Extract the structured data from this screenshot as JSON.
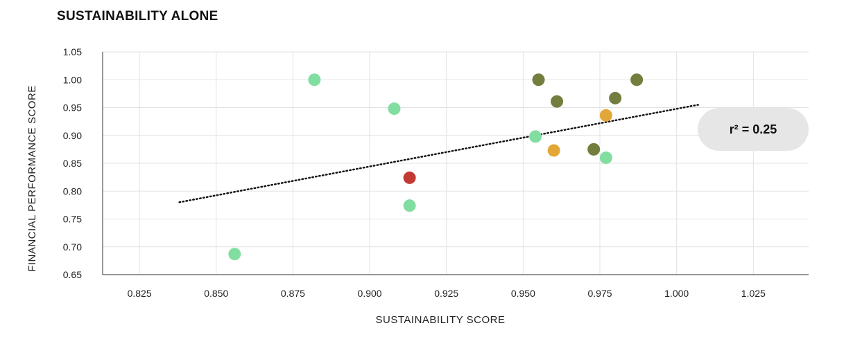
{
  "chart_data": {
    "type": "scatter",
    "title": "SUSTAINABILITY ALONE",
    "xlabel": "SUSTAINABILITY SCORE",
    "ylabel": "FINANCIAL PERFORMANCE SCORE",
    "xlim": [
      0.813,
      1.043
    ],
    "ylim": [
      0.65,
      1.05
    ],
    "x_ticks": [
      0.825,
      0.85,
      0.875,
      0.9,
      0.925,
      0.95,
      0.975,
      1.0,
      1.025
    ],
    "x_tick_labels": [
      "0.825",
      "0.850",
      "0.875",
      "0.900",
      "0.925",
      "0.950",
      "0.975",
      "1.000",
      "1.025"
    ],
    "y_ticks": [
      0.65,
      0.7,
      0.75,
      0.8,
      0.85,
      0.9,
      0.95,
      1.0,
      1.05
    ],
    "y_tick_labels": [
      "0.65",
      "0.70",
      "0.75",
      "0.80",
      "0.85",
      "0.90",
      "0.95",
      "1.00",
      "1.05"
    ],
    "grid": true,
    "points": [
      {
        "x": 0.882,
        "y": 1.0,
        "color": "#82dea0"
      },
      {
        "x": 0.908,
        "y": 0.948,
        "color": "#82dea0"
      },
      {
        "x": 0.913,
        "y": 0.774,
        "color": "#82dea0"
      },
      {
        "x": 0.856,
        "y": 0.687,
        "color": "#82dea0"
      },
      {
        "x": 0.954,
        "y": 0.898,
        "color": "#82dea0"
      },
      {
        "x": 0.977,
        "y": 0.86,
        "color": "#82dea0"
      },
      {
        "x": 0.913,
        "y": 0.824,
        "color": "#c33a34"
      },
      {
        "x": 0.96,
        "y": 0.873,
        "color": "#e3a737"
      },
      {
        "x": 0.977,
        "y": 0.936,
        "color": "#e3a737"
      },
      {
        "x": 0.955,
        "y": 1.0,
        "color": "#737d3e"
      },
      {
        "x": 0.961,
        "y": 0.961,
        "color": "#737d3e"
      },
      {
        "x": 0.98,
        "y": 0.967,
        "color": "#737d3e"
      },
      {
        "x": 0.987,
        "y": 1.0,
        "color": "#737d3e"
      },
      {
        "x": 0.973,
        "y": 0.875,
        "color": "#737d3e"
      }
    ],
    "trendline": {
      "x": [
        0.838,
        1.007
      ],
      "y": [
        0.78,
        0.955
      ]
    },
    "annotation": "r² = 0.25"
  }
}
